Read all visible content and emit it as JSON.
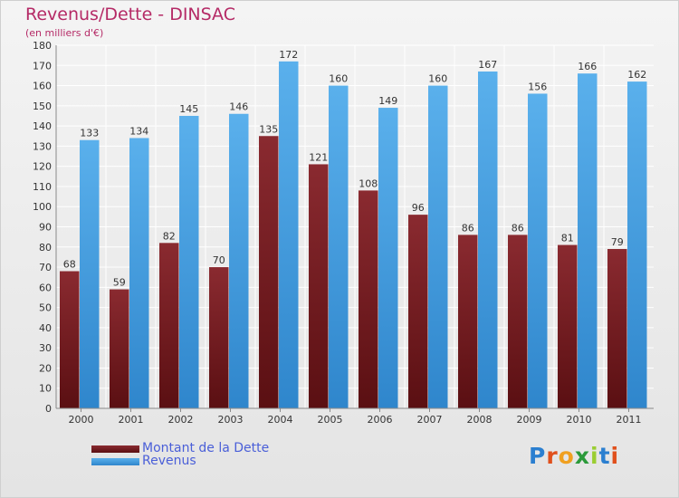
{
  "colors": {
    "title": "#b52a66",
    "dette": "#7a1f24",
    "revenus": "#4aa3e3",
    "legend_text": "#4a5fd8",
    "grid": "#ffffff"
  },
  "brand": {
    "logo_text": "Proxiti",
    "letter_colors": [
      "#2b7fd0",
      "#e0501c",
      "#f0a020",
      "#2b9a3a",
      "#9acd32",
      "#2b7fd0",
      "#e0501c"
    ]
  },
  "chart_data": {
    "type": "bar",
    "title": "Revenus/Dette - DINSAC",
    "subtitle": "(en milliers d'€)",
    "xlabel": "",
    "ylabel": "",
    "ylim": [
      0,
      180
    ],
    "y_ticks": [
      0,
      10,
      20,
      30,
      40,
      50,
      60,
      70,
      80,
      90,
      100,
      110,
      120,
      130,
      140,
      150,
      160,
      170,
      180
    ],
    "grid": true,
    "legend_position": "bottom-left",
    "categories": [
      "2000",
      "2001",
      "2002",
      "2003",
      "2004",
      "2005",
      "2006",
      "2007",
      "2008",
      "2009",
      "2010",
      "2011"
    ],
    "series": [
      {
        "name": "Montant de la Dette",
        "values": [
          68,
          59,
          82,
          70,
          135,
          121,
          108,
          96,
          86,
          86,
          81,
          79
        ]
      },
      {
        "name": "Revenus",
        "values": [
          133,
          134,
          145,
          146,
          172,
          160,
          149,
          160,
          167,
          156,
          166,
          162
        ]
      }
    ]
  }
}
